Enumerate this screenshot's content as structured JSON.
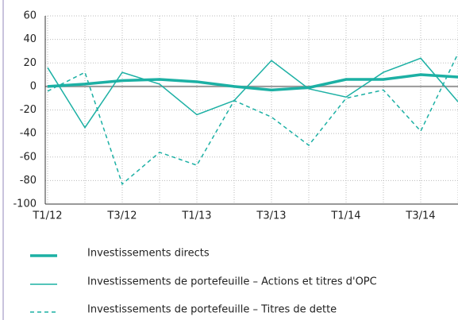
{
  "chart_data": {
    "type": "line",
    "categories": [
      "T1/12",
      null,
      "T3/12",
      null,
      "T1/13",
      null,
      "T3/13",
      null,
      "T1/14",
      null,
      "T3/14",
      null
    ],
    "series": [
      {
        "name": "Investissements directs",
        "color": "#1cb0a4",
        "style": "thick",
        "values": [
          0,
          2,
          5,
          6,
          4,
          0,
          -3,
          -1,
          6,
          6,
          10,
          8
        ]
      },
      {
        "name": "Investissements de portefeuille – Actions et titres d'OPC",
        "color": "#1cb0a4",
        "style": "solid",
        "values": [
          16,
          -35,
          12,
          2,
          -24,
          -12,
          22,
          -2,
          -9,
          12,
          24,
          -13
        ]
      },
      {
        "name": "Investissements de portefeuille – Titres de dette",
        "color": "#1cb0a4",
        "style": "dashed",
        "values": [
          -4,
          12,
          -83,
          -56,
          -67,
          -12,
          -26,
          -50,
          -10,
          -3,
          -38,
          28
        ]
      }
    ],
    "ylim": [
      -100,
      60
    ],
    "yticks": [
      -100,
      -80,
      -60,
      -40,
      -20,
      0,
      20,
      40,
      60
    ],
    "grid": true
  }
}
